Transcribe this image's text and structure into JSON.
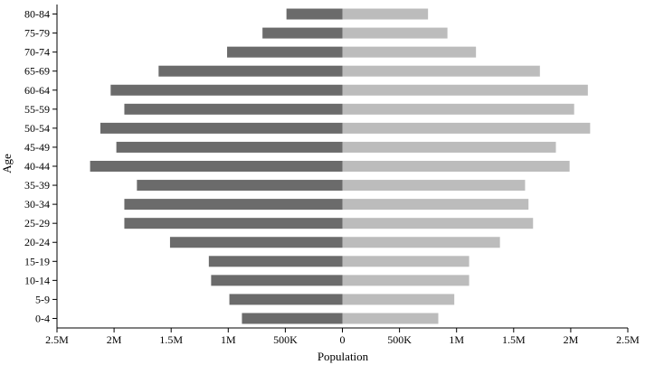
{
  "chart_data": {
    "type": "bar",
    "orientation": "horizontal",
    "layout": "population-pyramid",
    "categories": [
      "80-84",
      "75-79",
      "70-74",
      "65-69",
      "60-64",
      "55-59",
      "50-54",
      "45-49",
      "40-44",
      "35-39",
      "30-34",
      "25-29",
      "20-24",
      "15-19",
      "10-14",
      "5-9",
      "0-4"
    ],
    "series": [
      {
        "side": "left",
        "color": "#6b6b6b",
        "values": [
          490000,
          700000,
          1010000,
          1610000,
          2030000,
          1910000,
          2120000,
          1980000,
          2210000,
          1800000,
          1910000,
          1910000,
          1510000,
          1170000,
          1150000,
          990000,
          880000
        ]
      },
      {
        "side": "right",
        "color": "#bcbcbc",
        "values": [
          750000,
          920000,
          1170000,
          1730000,
          2150000,
          2030000,
          2170000,
          1870000,
          1990000,
          1600000,
          1630000,
          1670000,
          1380000,
          1110000,
          1110000,
          980000,
          840000
        ]
      }
    ],
    "xlabel": "Population",
    "ylabel": "Age",
    "xlim": [
      -2500000,
      2500000
    ],
    "xticks": [
      -2500000,
      -2000000,
      -1500000,
      -1000000,
      -500000,
      0,
      500000,
      1000000,
      1500000,
      2000000,
      2500000
    ],
    "xtick_labels": [
      "2.5M",
      "2M",
      "1.5M",
      "1M",
      "500K",
      "0",
      "500K",
      "1M",
      "1.5M",
      "2M",
      "2.5M"
    ],
    "grid": false,
    "legend": "none"
  }
}
